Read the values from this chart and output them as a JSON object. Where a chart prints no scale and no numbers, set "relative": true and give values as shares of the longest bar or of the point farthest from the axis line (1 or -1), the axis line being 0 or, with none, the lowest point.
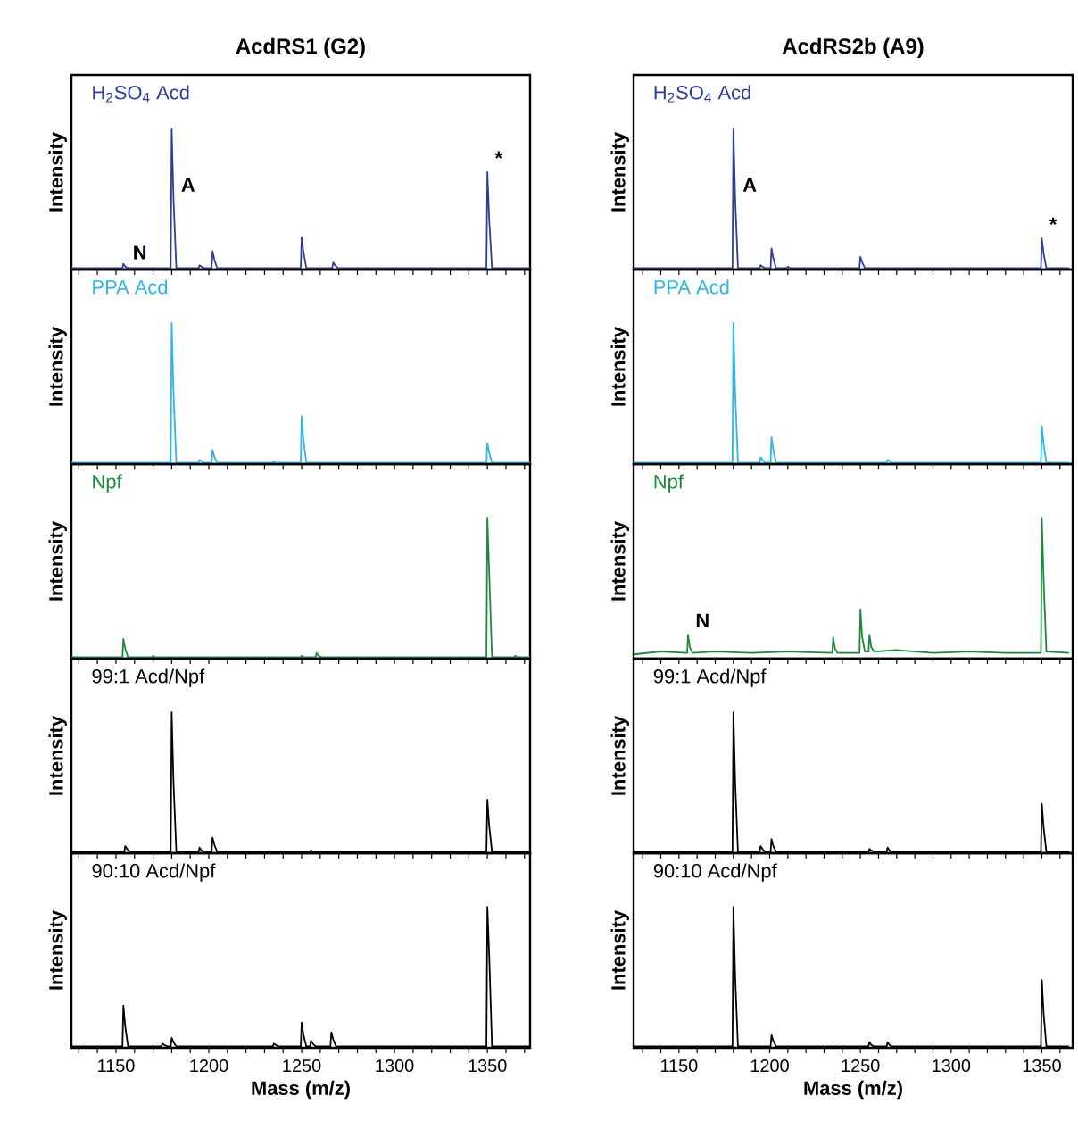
{
  "chart_data": [
    {
      "type": "line",
      "relative": true,
      "title": "AcdRS1 (G2)",
      "ylabel": "Intensity",
      "xlim": [
        1126,
        1373
      ],
      "tick_labels": false,
      "xticks": [
        {
          "value": 1130,
          "label": null
        },
        {
          "value": 1140,
          "label": null
        },
        1150,
        {
          "value": 1160,
          "label": null
        },
        {
          "value": 1170,
          "label": null
        },
        {
          "value": 1180,
          "label": null
        },
        {
          "value": 1190,
          "label": null
        },
        1200,
        {
          "value": 1210,
          "label": null
        },
        {
          "value": 1220,
          "label": null
        },
        {
          "value": 1230,
          "label": null
        },
        {
          "value": 1240,
          "label": null
        },
        1250,
        {
          "value": 1260,
          "label": null
        },
        {
          "value": 1270,
          "label": null
        },
        {
          "value": 1280,
          "label": null
        },
        {
          "value": 1290,
          "label": null
        },
        1300,
        {
          "value": 1310,
          "label": null
        },
        {
          "value": 1320,
          "label": null
        },
        {
          "value": 1330,
          "label": null
        },
        {
          "value": 1340,
          "label": null
        },
        1350,
        {
          "value": 1360,
          "label": null
        },
        {
          "value": 1370,
          "label": null
        }
      ],
      "annotations": [
        {
          "text": "N",
          "x": 1155,
          "y": 0.02
        },
        {
          "text": "A",
          "x": 1181,
          "y": 0.5
        },
        {
          "text": "*",
          "x": 1350,
          "y": 0.69
        }
      ],
      "series": [
        {
          "name": "H$_{2}$SO$_{4}$ Acd",
          "color": "#2e3d98",
          "x": [
            1126,
            1153.5,
            1154,
            1155,
            1156.5,
            1179.5,
            1180,
            1181,
            1182.5,
            1194.5,
            1195,
            1196,
            1197.5,
            1201.5,
            1202,
            1203,
            1204.5,
            1249.5,
            1250,
            1251,
            1252.5,
            1266.5,
            1267,
            1268,
            1269.5,
            1349.5,
            1350,
            1351,
            1352.5,
            1373
          ],
          "values": [
            0.01,
            0.01,
            0.04,
            0.02,
            0.01,
            0.01,
            1,
            0.5,
            0.01,
            0.01,
            0.03,
            0.02,
            0.01,
            0.01,
            0.13,
            0.07,
            0.01,
            0.01,
            0.23,
            0.12,
            0.01,
            0.01,
            0.05,
            0.03,
            0.01,
            0.01,
            0.69,
            0.35,
            0.01,
            0.01
          ]
        }
      ]
    },
    {
      "type": "line",
      "relative": true,
      "title": "AcdRS2b (A9)",
      "ylabel": "Intensity",
      "xlim": [
        1125,
        1367
      ],
      "tick_labels": false,
      "xticks": [
        {
          "value": 1130,
          "label": null
        },
        {
          "value": 1140,
          "label": null
        },
        1150,
        {
          "value": 1160,
          "label": null
        },
        {
          "value": 1170,
          "label": null
        },
        {
          "value": 1180,
          "label": null
        },
        {
          "value": 1190,
          "label": null
        },
        1200,
        {
          "value": 1210,
          "label": null
        },
        {
          "value": 1220,
          "label": null
        },
        {
          "value": 1230,
          "label": null
        },
        {
          "value": 1240,
          "label": null
        },
        1250,
        {
          "value": 1260,
          "label": null
        },
        {
          "value": 1270,
          "label": null
        },
        {
          "value": 1280,
          "label": null
        },
        {
          "value": 1290,
          "label": null
        },
        1300,
        {
          "value": 1310,
          "label": null
        },
        {
          "value": 1320,
          "label": null
        },
        {
          "value": 1330,
          "label": null
        },
        {
          "value": 1340,
          "label": null
        },
        1350,
        {
          "value": 1360,
          "label": null
        }
      ],
      "annotations": [
        {
          "text": "A",
          "x": 1181,
          "y": 0.5
        },
        {
          "text": "*",
          "x": 1350,
          "y": 0.22
        }
      ],
      "series": [
        {
          "name": "H$_{2}$SO$_{4}$ Acd",
          "color": "#2e3d98",
          "x": [
            1125,
            1179.5,
            1180,
            1181,
            1182.5,
            1194.5,
            1195,
            1196,
            1197.5,
            1200.5,
            1201,
            1202,
            1203.5,
            1209.5,
            1210,
            1211,
            1212.5,
            1249.5,
            1250,
            1251,
            1252.5,
            1349.5,
            1350,
            1351,
            1352.5,
            1365
          ],
          "values": [
            0.01,
            0.01,
            1,
            0.5,
            0.01,
            0.01,
            0.03,
            0.02,
            0.01,
            0.01,
            0.15,
            0.08,
            0.01,
            0.01,
            0.02,
            0.01,
            0.01,
            0.01,
            0.09,
            0.05,
            0.01,
            0.01,
            0.22,
            0.11,
            0.01,
            0.01
          ]
        }
      ]
    },
    {
      "type": "line",
      "relative": true,
      "ylabel": "Intensity",
      "xlim": [
        1126,
        1373
      ],
      "tick_labels": false,
      "xticks": [
        {
          "value": 1130,
          "label": null
        },
        {
          "value": 1140,
          "label": null
        },
        1150,
        {
          "value": 1160,
          "label": null
        },
        {
          "value": 1170,
          "label": null
        },
        {
          "value": 1180,
          "label": null
        },
        {
          "value": 1190,
          "label": null
        },
        1200,
        {
          "value": 1210,
          "label": null
        },
        {
          "value": 1220,
          "label": null
        },
        {
          "value": 1230,
          "label": null
        },
        {
          "value": 1240,
          "label": null
        },
        1250,
        {
          "value": 1260,
          "label": null
        },
        {
          "value": 1270,
          "label": null
        },
        {
          "value": 1280,
          "label": null
        },
        {
          "value": 1290,
          "label": null
        },
        1300,
        {
          "value": 1310,
          "label": null
        },
        {
          "value": 1320,
          "label": null
        },
        {
          "value": 1330,
          "label": null
        },
        {
          "value": 1340,
          "label": null
        },
        1350,
        {
          "value": 1360,
          "label": null
        },
        {
          "value": 1370,
          "label": null
        }
      ],
      "series": [
        {
          "name": "PPA Acd",
          "color": "#29b6e8",
          "x": [
            1126,
            1179.5,
            1180,
            1181,
            1182.5,
            1194.5,
            1195,
            1196,
            1197.5,
            1201.5,
            1202,
            1203,
            1204.5,
            1234.5,
            1235,
            1236,
            1237.5,
            1249.5,
            1250,
            1251,
            1252.5,
            1349.5,
            1350,
            1351,
            1352.5,
            1373
          ],
          "values": [
            0.01,
            0.01,
            1,
            0.5,
            0.01,
            0.01,
            0.03,
            0.02,
            0.01,
            0.01,
            0.1,
            0.05,
            0.01,
            0.01,
            0.02,
            0.01,
            0.01,
            0.01,
            0.34,
            0.17,
            0.01,
            0.01,
            0.15,
            0.08,
            0.01,
            0.01
          ]
        }
      ]
    },
    {
      "type": "line",
      "relative": true,
      "ylabel": "Intensity",
      "xlim": [
        1125,
        1367
      ],
      "tick_labels": false,
      "xticks": [
        {
          "value": 1130,
          "label": null
        },
        {
          "value": 1140,
          "label": null
        },
        1150,
        {
          "value": 1160,
          "label": null
        },
        {
          "value": 1170,
          "label": null
        },
        {
          "value": 1180,
          "label": null
        },
        {
          "value": 1190,
          "label": null
        },
        1200,
        {
          "value": 1210,
          "label": null
        },
        {
          "value": 1220,
          "label": null
        },
        {
          "value": 1230,
          "label": null
        },
        {
          "value": 1240,
          "label": null
        },
        1250,
        {
          "value": 1260,
          "label": null
        },
        {
          "value": 1270,
          "label": null
        },
        {
          "value": 1280,
          "label": null
        },
        {
          "value": 1290,
          "label": null
        },
        1300,
        {
          "value": 1310,
          "label": null
        },
        {
          "value": 1320,
          "label": null
        },
        {
          "value": 1330,
          "label": null
        },
        {
          "value": 1340,
          "label": null
        },
        1350,
        {
          "value": 1360,
          "label": null
        }
      ],
      "series": [
        {
          "name": "PPA Acd",
          "color": "#29b6e8",
          "x": [
            1125,
            1179.5,
            1180,
            1181,
            1182.5,
            1194.5,
            1195,
            1196,
            1197.5,
            1200.5,
            1201,
            1202,
            1203.5,
            1264.5,
            1265,
            1266,
            1267.5,
            1349.5,
            1350,
            1351,
            1352.5,
            1365
          ],
          "values": [
            0.01,
            0.01,
            1,
            0.5,
            0.01,
            0.01,
            0.05,
            0.03,
            0.01,
            0.01,
            0.19,
            0.1,
            0.01,
            0.01,
            0.03,
            0.02,
            0.01,
            0.01,
            0.27,
            0.14,
            0.01,
            0.01
          ]
        }
      ]
    },
    {
      "type": "line",
      "relative": true,
      "ylabel": "Intensity",
      "xlim": [
        1126,
        1373
      ],
      "tick_labels": false,
      "xticks": [
        {
          "value": 1130,
          "label": null
        },
        {
          "value": 1140,
          "label": null
        },
        1150,
        {
          "value": 1160,
          "label": null
        },
        {
          "value": 1170,
          "label": null
        },
        {
          "value": 1180,
          "label": null
        },
        {
          "value": 1190,
          "label": null
        },
        1200,
        {
          "value": 1210,
          "label": null
        },
        {
          "value": 1220,
          "label": null
        },
        {
          "value": 1230,
          "label": null
        },
        {
          "value": 1240,
          "label": null
        },
        1250,
        {
          "value": 1260,
          "label": null
        },
        {
          "value": 1270,
          "label": null
        },
        {
          "value": 1280,
          "label": null
        },
        {
          "value": 1290,
          "label": null
        },
        1300,
        {
          "value": 1310,
          "label": null
        },
        {
          "value": 1320,
          "label": null
        },
        {
          "value": 1330,
          "label": null
        },
        {
          "value": 1340,
          "label": null
        },
        1350,
        {
          "value": 1360,
          "label": null
        },
        {
          "value": 1370,
          "label": null
        }
      ],
      "series": [
        {
          "name": "Npf",
          "color": "#1a8a3a",
          "x": [
            1126,
            1153.5,
            1154,
            1155,
            1156.5,
            1169.5,
            1170,
            1171,
            1172.5,
            1249.5,
            1250,
            1251,
            1252.5,
            1257.5,
            1258,
            1259,
            1260.5,
            1349.5,
            1350,
            1351,
            1352.5,
            1364.5,
            1365,
            1366,
            1367.5,
            1373
          ],
          "values": [
            0.01,
            0.01,
            0.14,
            0.07,
            0.01,
            0.01,
            0.02,
            0.01,
            0.01,
            0.01,
            0.02,
            0.01,
            0.01,
            0.01,
            0.04,
            0.02,
            0.01,
            0.01,
            1,
            0.6,
            0.01,
            0.01,
            0.02,
            0.01,
            0.01,
            0.01
          ]
        }
      ]
    },
    {
      "type": "line",
      "relative": true,
      "ylabel": "Intensity",
      "xlim": [
        1125,
        1367
      ],
      "tick_labels": false,
      "xticks": [
        {
          "value": 1130,
          "label": null
        },
        {
          "value": 1140,
          "label": null
        },
        1150,
        {
          "value": 1160,
          "label": null
        },
        {
          "value": 1170,
          "label": null
        },
        {
          "value": 1180,
          "label": null
        },
        {
          "value": 1190,
          "label": null
        },
        1200,
        {
          "value": 1210,
          "label": null
        },
        {
          "value": 1220,
          "label": null
        },
        {
          "value": 1230,
          "label": null
        },
        {
          "value": 1240,
          "label": null
        },
        1250,
        {
          "value": 1260,
          "label": null
        },
        {
          "value": 1270,
          "label": null
        },
        {
          "value": 1280,
          "label": null
        },
        {
          "value": 1290,
          "label": null
        },
        1300,
        {
          "value": 1310,
          "label": null
        },
        {
          "value": 1320,
          "label": null
        },
        {
          "value": 1330,
          "label": null
        },
        {
          "value": 1340,
          "label": null
        },
        1350,
        {
          "value": 1360,
          "label": null
        }
      ],
      "annotations": [
        {
          "text": "N",
          "x": 1155,
          "y": 0.17
        }
      ],
      "series": [
        {
          "name": "Npf",
          "color": "#1a8a3a",
          "x": [
            1125,
            1140,
            1154.5,
            1155,
            1156,
            1157.5,
            1170,
            1190,
            1210,
            1234.5,
            1235,
            1236,
            1237.5,
            1249.5,
            1250,
            1251,
            1252.5,
            1254.5,
            1255,
            1256,
            1257.5,
            1270,
            1290,
            1310,
            1330,
            1349.5,
            1350,
            1351,
            1352.5,
            1365
          ],
          "values": [
            0.03,
            0.05,
            0.04,
            0.17,
            0.08,
            0.04,
            0.05,
            0.04,
            0.05,
            0.04,
            0.15,
            0.07,
            0.04,
            0.04,
            0.35,
            0.15,
            0.05,
            0.05,
            0.17,
            0.08,
            0.05,
            0.06,
            0.04,
            0.05,
            0.04,
            0.04,
            1,
            0.55,
            0.05,
            0.04
          ]
        }
      ]
    },
    {
      "type": "line",
      "relative": true,
      "ylabel": "Intensity",
      "xlim": [
        1126,
        1373
      ],
      "tick_labels": false,
      "xticks": [
        {
          "value": 1130,
          "label": null
        },
        {
          "value": 1140,
          "label": null
        },
        1150,
        {
          "value": 1160,
          "label": null
        },
        {
          "value": 1170,
          "label": null
        },
        {
          "value": 1180,
          "label": null
        },
        {
          "value": 1190,
          "label": null
        },
        1200,
        {
          "value": 1210,
          "label": null
        },
        {
          "value": 1220,
          "label": null
        },
        {
          "value": 1230,
          "label": null
        },
        {
          "value": 1240,
          "label": null
        },
        1250,
        {
          "value": 1260,
          "label": null
        },
        {
          "value": 1270,
          "label": null
        },
        {
          "value": 1280,
          "label": null
        },
        {
          "value": 1290,
          "label": null
        },
        1300,
        {
          "value": 1310,
          "label": null
        },
        {
          "value": 1320,
          "label": null
        },
        {
          "value": 1330,
          "label": null
        },
        {
          "value": 1340,
          "label": null
        },
        1350,
        {
          "value": 1360,
          "label": null
        },
        {
          "value": 1370,
          "label": null
        }
      ],
      "series": [
        {
          "name": "99:1 Acd/Npf",
          "color": "#000000",
          "x": [
            1126,
            1154.5,
            1155,
            1156,
            1157.5,
            1179.5,
            1180,
            1181,
            1182.5,
            1194.5,
            1195,
            1196,
            1197.5,
            1201.5,
            1202,
            1203,
            1204.5,
            1254.5,
            1255,
            1256,
            1257.5,
            1349.5,
            1350,
            1351,
            1352.5,
            1373
          ],
          "values": [
            0.01,
            0.01,
            0.05,
            0.03,
            0.01,
            0.01,
            1,
            0.5,
            0.01,
            0.01,
            0.04,
            0.02,
            0.01,
            0.01,
            0.11,
            0.06,
            0.01,
            0.01,
            0.02,
            0.01,
            0.01,
            0.01,
            0.38,
            0.19,
            0.01,
            0.01
          ]
        }
      ]
    },
    {
      "type": "line",
      "relative": true,
      "ylabel": "Intensity",
      "xlim": [
        1125,
        1367
      ],
      "tick_labels": false,
      "xticks": [
        {
          "value": 1130,
          "label": null
        },
        {
          "value": 1140,
          "label": null
        },
        1150,
        {
          "value": 1160,
          "label": null
        },
        {
          "value": 1170,
          "label": null
        },
        {
          "value": 1180,
          "label": null
        },
        {
          "value": 1190,
          "label": null
        },
        1200,
        {
          "value": 1210,
          "label": null
        },
        {
          "value": 1220,
          "label": null
        },
        {
          "value": 1230,
          "label": null
        },
        {
          "value": 1240,
          "label": null
        },
        1250,
        {
          "value": 1260,
          "label": null
        },
        {
          "value": 1270,
          "label": null
        },
        {
          "value": 1280,
          "label": null
        },
        {
          "value": 1290,
          "label": null
        },
        1300,
        {
          "value": 1310,
          "label": null
        },
        {
          "value": 1320,
          "label": null
        },
        {
          "value": 1330,
          "label": null
        },
        {
          "value": 1340,
          "label": null
        },
        1350,
        {
          "value": 1360,
          "label": null
        }
      ],
      "series": [
        {
          "name": "99:1 Acd/Npf",
          "color": "#000000",
          "x": [
            1125,
            1179.5,
            1180,
            1181,
            1182.5,
            1194.5,
            1195,
            1196,
            1197.5,
            1200.5,
            1201,
            1202,
            1203.5,
            1254.5,
            1255,
            1256,
            1257.5,
            1264.5,
            1265,
            1266,
            1267.5,
            1349.5,
            1350,
            1351,
            1352.5,
            1365
          ],
          "values": [
            0.01,
            0.01,
            1,
            0.5,
            0.01,
            0.01,
            0.05,
            0.03,
            0.01,
            0.01,
            0.1,
            0.05,
            0.01,
            0.01,
            0.03,
            0.02,
            0.01,
            0.01,
            0.04,
            0.02,
            0.01,
            0.01,
            0.35,
            0.18,
            0.01,
            0.01
          ]
        }
      ]
    },
    {
      "type": "line",
      "relative": true,
      "ylabel": "Intensity",
      "xlabel": "Mass (m/z)",
      "xlim": [
        1126,
        1373
      ],
      "tick_labels": "x",
      "xticks": [
        {
          "value": 1130,
          "label": null
        },
        {
          "value": 1140,
          "label": null
        },
        1150,
        {
          "value": 1160,
          "label": null
        },
        {
          "value": 1170,
          "label": null
        },
        {
          "value": 1180,
          "label": null
        },
        {
          "value": 1190,
          "label": null
        },
        1200,
        {
          "value": 1210,
          "label": null
        },
        {
          "value": 1220,
          "label": null
        },
        {
          "value": 1230,
          "label": null
        },
        {
          "value": 1240,
          "label": null
        },
        1250,
        {
          "value": 1260,
          "label": null
        },
        {
          "value": 1270,
          "label": null
        },
        {
          "value": 1280,
          "label": null
        },
        {
          "value": 1290,
          "label": null
        },
        1300,
        {
          "value": 1310,
          "label": null
        },
        {
          "value": 1320,
          "label": null
        },
        {
          "value": 1330,
          "label": null
        },
        {
          "value": 1340,
          "label": null
        },
        1350,
        {
          "value": 1360,
          "label": null
        },
        {
          "value": 1370,
          "label": null
        }
      ],
      "series": [
        {
          "name": "90:10 Acd/Npf",
          "color": "#000000",
          "x": [
            1126,
            1153.5,
            1154,
            1155,
            1156.5,
            1174.5,
            1175,
            1176,
            1177.5,
            1179.5,
            1180,
            1181,
            1182.5,
            1234.5,
            1235,
            1236,
            1237.5,
            1249.5,
            1250,
            1251,
            1252.5,
            1254.5,
            1255,
            1256,
            1257.5,
            1265.5,
            1266,
            1267,
            1268.5,
            1349.5,
            1350,
            1351,
            1352.5,
            1373
          ],
          "values": [
            0.01,
            0.01,
            0.3,
            0.15,
            0.01,
            0.01,
            0.03,
            0.02,
            0.01,
            0.01,
            0.07,
            0.04,
            0.01,
            0.01,
            0.03,
            0.02,
            0.01,
            0.01,
            0.18,
            0.09,
            0.01,
            0.01,
            0.05,
            0.03,
            0.01,
            0.01,
            0.11,
            0.06,
            0.01,
            0.01,
            1,
            0.65,
            0.01,
            0.01
          ]
        }
      ]
    },
    {
      "type": "line",
      "relative": true,
      "ylabel": "Intensity",
      "xlabel": "Mass (m/z)",
      "xlim": [
        1125,
        1367
      ],
      "tick_labels": "x",
      "xticks": [
        {
          "value": 1130,
          "label": null
        },
        {
          "value": 1140,
          "label": null
        },
        1150,
        {
          "value": 1160,
          "label": null
        },
        {
          "value": 1170,
          "label": null
        },
        {
          "value": 1180,
          "label": null
        },
        {
          "value": 1190,
          "label": null
        },
        1200,
        {
          "value": 1210,
          "label": null
        },
        {
          "value": 1220,
          "label": null
        },
        {
          "value": 1230,
          "label": null
        },
        {
          "value": 1240,
          "label": null
        },
        1250,
        {
          "value": 1260,
          "label": null
        },
        {
          "value": 1270,
          "label": null
        },
        {
          "value": 1280,
          "label": null
        },
        {
          "value": 1290,
          "label": null
        },
        1300,
        {
          "value": 1310,
          "label": null
        },
        {
          "value": 1320,
          "label": null
        },
        {
          "value": 1330,
          "label": null
        },
        {
          "value": 1340,
          "label": null
        },
        1350,
        {
          "value": 1360,
          "label": null
        }
      ],
      "series": [
        {
          "name": "90:10 Acd/Npf",
          "color": "#000000",
          "x": [
            1125,
            1179.5,
            1180,
            1181,
            1182.5,
            1200.5,
            1201,
            1202,
            1203.5,
            1254.5,
            1255,
            1256,
            1257.5,
            1264.5,
            1265,
            1266,
            1267.5,
            1349.5,
            1350,
            1351,
            1352.5,
            1365
          ],
          "values": [
            0.01,
            0.01,
            1,
            0.5,
            0.01,
            0.01,
            0.09,
            0.05,
            0.01,
            0.01,
            0.04,
            0.02,
            0.01,
            0.01,
            0.04,
            0.02,
            0.01,
            0.01,
            0.48,
            0.24,
            0.01,
            0.01
          ]
        }
      ]
    }
  ]
}
